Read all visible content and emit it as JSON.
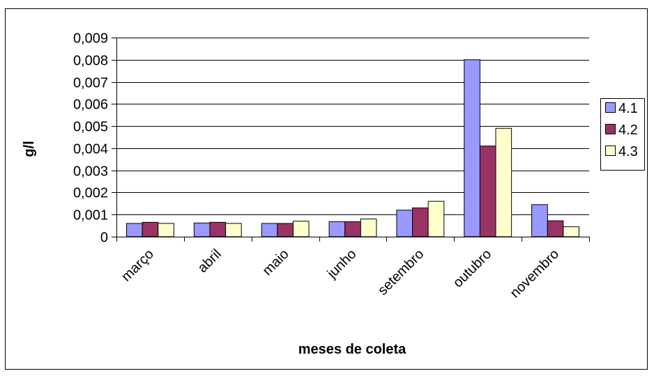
{
  "chart_data": {
    "type": "bar",
    "title": "",
    "xlabel": "meses de coleta",
    "ylabel": "g/l",
    "ylim": [
      0,
      0.009
    ],
    "yticks": [
      "0",
      "0,001",
      "0,002",
      "0,003",
      "0,004",
      "0,005",
      "0,006",
      "0,007",
      "0,008",
      "0,009"
    ],
    "ytick_values": [
      0,
      0.001,
      0.002,
      0.003,
      0.004,
      0.005,
      0.006,
      0.007,
      0.008,
      0.009
    ],
    "grid": true,
    "legend_position": "right",
    "categories": [
      "março",
      "abril",
      "maio",
      "junho",
      "setembro",
      "outubro",
      "novembro"
    ],
    "series": [
      {
        "name": "4.1",
        "color": "#9999ff",
        "values": [
          0.0006,
          0.00062,
          0.0006,
          0.00068,
          0.0012,
          0.008,
          0.00145
        ]
      },
      {
        "name": "4.2",
        "color": "#993366",
        "values": [
          0.00065,
          0.00065,
          0.0006,
          0.00068,
          0.0013,
          0.0041,
          0.00072
        ]
      },
      {
        "name": "4.3",
        "color": "#ffffcc",
        "values": [
          0.0006,
          0.0006,
          0.0007,
          0.0008,
          0.0016,
          0.0049,
          0.00045
        ]
      }
    ]
  }
}
